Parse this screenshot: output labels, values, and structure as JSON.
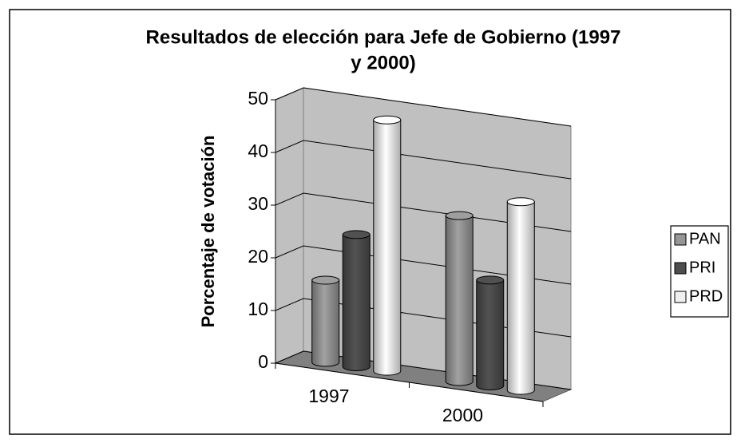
{
  "chart_data": {
    "type": "bar3d",
    "title": "Resultados de elección para Jefe de Gobierno (1997 y 2000)",
    "title_lines": [
      "Resultados de elección para Jefe de Gobierno (1997",
      "y 2000)"
    ],
    "ylabel": "Porcentaje de votación",
    "categories": [
      "1997",
      "2000"
    ],
    "series": [
      {
        "name": "PAN",
        "color": "#969696",
        "values": [
          15.6,
          31.5
        ]
      },
      {
        "name": "PRI",
        "color": "#4d4d4d",
        "values": [
          25.1,
          20.1
        ]
      },
      {
        "name": "PRD",
        "color": "#f0f0f0",
        "values": [
          47.7,
          35.8
        ]
      }
    ],
    "ylim": [
      0,
      50
    ],
    "yticks": [
      0,
      10,
      20,
      30,
      40,
      50
    ],
    "grid": true,
    "legend": "right"
  }
}
